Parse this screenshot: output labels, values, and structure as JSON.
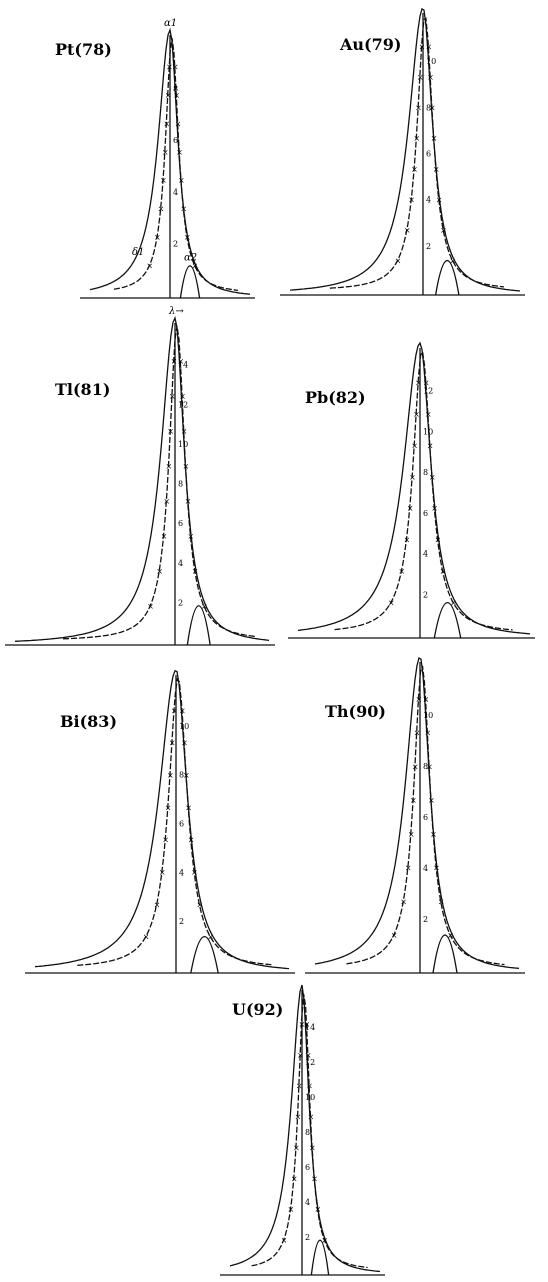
{
  "panels": [
    {
      "label": "Pt(78)",
      "ticks": [
        "2",
        "4",
        "6",
        "8"
      ],
      "annotations": [
        "α1",
        "α2",
        "δ1"
      ]
    },
    {
      "label": "Au(79)",
      "ticks": [
        "2",
        "4",
        "6",
        "8",
        "10"
      ],
      "annotations": []
    },
    {
      "label": "Tl(81)",
      "ticks": [
        "2",
        "4",
        "6",
        "8",
        "10",
        "12",
        "14"
      ],
      "annotations": [
        "λ→"
      ]
    },
    {
      "label": "Pb(82)",
      "ticks": [
        "2",
        "4",
        "6",
        "8",
        "10",
        "12"
      ],
      "annotations": []
    },
    {
      "label": "Bi(83)",
      "ticks": [
        "2",
        "4",
        "6",
        "8",
        "10"
      ],
      "annotations": []
    },
    {
      "label": "Th(90)",
      "ticks": [
        "2",
        "4",
        "6",
        "8",
        "10"
      ],
      "annotations": []
    },
    {
      "label": "U(92)",
      "ticks": [
        "2",
        "4",
        "6",
        "8",
        "10",
        "12",
        "14"
      ],
      "annotations": []
    }
  ]
}
